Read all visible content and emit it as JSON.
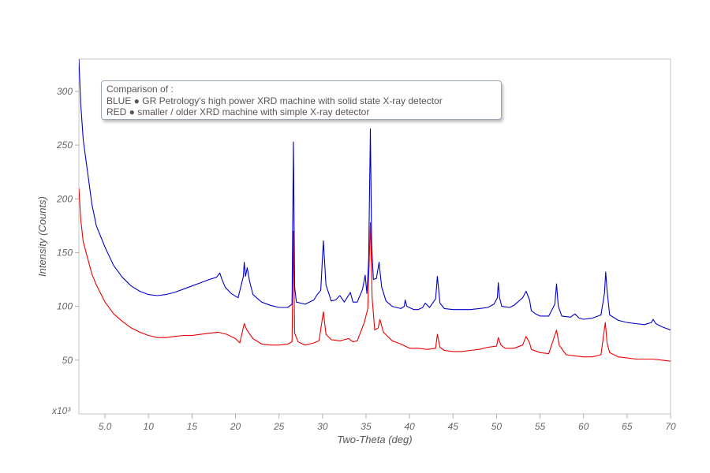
{
  "chart_data": {
    "type": "line",
    "title": "",
    "xlabel": "Two-Theta (deg)",
    "ylabel": "Intensity (Counts)",
    "y_multiplier_label": "x10³",
    "xlim": [
      2,
      70
    ],
    "ylim": [
      0,
      330
    ],
    "x_ticks": [
      5,
      10,
      15,
      20,
      25,
      30,
      35,
      40,
      45,
      50,
      55,
      60,
      65,
      70
    ],
    "x_tick_labels": [
      "5.0",
      "10",
      "15",
      "20",
      "25",
      "30",
      "35",
      "40",
      "45",
      "50",
      "55",
      "60",
      "65",
      "70"
    ],
    "y_ticks": [
      50,
      100,
      150,
      200,
      250,
      300
    ],
    "y_tick_labels": [
      "50",
      "100",
      "150",
      "200",
      "250",
      "300"
    ],
    "grid": false,
    "legend": {
      "placement": "top-left",
      "lines": [
        "Comparison of :",
        "BLUE ● GR Petrology's high power XRD machine with solid state X-ray detector",
        "RED ● smaller / older XRD machine with simple X-ray detector"
      ]
    },
    "series": [
      {
        "color": "#0000cc",
        "points": [
          [
            2.0,
            330
          ],
          [
            2.2,
            290
          ],
          [
            2.5,
            255
          ],
          [
            3,
            225
          ],
          [
            3.5,
            195
          ],
          [
            4,
            175
          ],
          [
            5,
            155
          ],
          [
            6,
            138
          ],
          [
            7,
            127
          ],
          [
            8,
            119
          ],
          [
            9,
            114
          ],
          [
            10,
            111
          ],
          [
            11,
            110
          ],
          [
            12,
            111
          ],
          [
            13,
            113
          ],
          [
            14,
            116
          ],
          [
            15,
            119
          ],
          [
            16,
            122
          ],
          [
            17,
            125
          ],
          [
            17.8,
            127
          ],
          [
            18.2,
            131
          ],
          [
            18.4,
            126
          ],
          [
            18.8,
            118
          ],
          [
            19.5,
            112
          ],
          [
            20.3,
            108
          ],
          [
            20.9,
            128
          ],
          [
            21.0,
            141
          ],
          [
            21.15,
            128
          ],
          [
            21.35,
            136
          ],
          [
            21.6,
            124
          ],
          [
            22,
            111
          ],
          [
            23,
            104
          ],
          [
            24,
            101
          ],
          [
            25,
            99
          ],
          [
            26,
            99
          ],
          [
            26.5,
            102
          ],
          [
            26.65,
            253
          ],
          [
            26.8,
            118
          ],
          [
            27.0,
            104
          ],
          [
            28,
            102
          ],
          [
            29,
            106
          ],
          [
            29.4,
            111
          ],
          [
            29.8,
            115
          ],
          [
            30.1,
            161
          ],
          [
            30.4,
            120
          ],
          [
            31,
            105
          ],
          [
            31.5,
            106
          ],
          [
            32,
            110
          ],
          [
            32.5,
            104
          ],
          [
            33.2,
            113
          ],
          [
            33.5,
            104
          ],
          [
            34,
            104
          ],
          [
            34.6,
            116
          ],
          [
            34.9,
            129
          ],
          [
            35.1,
            112
          ],
          [
            35.3,
            143
          ],
          [
            35.5,
            265
          ],
          [
            35.65,
            158
          ],
          [
            35.85,
            125
          ],
          [
            36.2,
            126
          ],
          [
            36.5,
            141
          ],
          [
            36.8,
            118
          ],
          [
            37.3,
            105
          ],
          [
            38,
            100
          ],
          [
            39,
            98
          ],
          [
            39.4,
            100
          ],
          [
            39.5,
            106
          ],
          [
            39.7,
            100
          ],
          [
            40.5,
            97
          ],
          [
            41,
            97
          ],
          [
            41.5,
            99
          ],
          [
            41.8,
            103
          ],
          [
            42.3,
            99
          ],
          [
            43.0,
            107
          ],
          [
            43.2,
            128
          ],
          [
            43.5,
            103
          ],
          [
            44,
            98
          ],
          [
            45,
            97
          ],
          [
            46,
            97
          ],
          [
            47,
            97
          ],
          [
            48,
            98
          ],
          [
            49,
            99
          ],
          [
            49.7,
            102
          ],
          [
            50.1,
            108
          ],
          [
            50.2,
            122
          ],
          [
            50.35,
            108
          ],
          [
            50.6,
            100
          ],
          [
            51.5,
            99
          ],
          [
            52,
            101
          ],
          [
            53,
            108
          ],
          [
            53.4,
            114
          ],
          [
            53.8,
            106
          ],
          [
            54,
            96
          ],
          [
            54.5,
            93
          ],
          [
            55,
            91
          ],
          [
            56,
            91
          ],
          [
            56.7,
            102
          ],
          [
            56.9,
            121
          ],
          [
            57.1,
            100
          ],
          [
            57.5,
            91
          ],
          [
            58.5,
            90
          ],
          [
            59,
            93
          ],
          [
            59.5,
            89
          ],
          [
            60,
            88
          ],
          [
            61,
            89
          ],
          [
            62,
            92
          ],
          [
            62.4,
            112
          ],
          [
            62.55,
            132
          ],
          [
            62.7,
            115
          ],
          [
            63,
            92
          ],
          [
            64,
            87
          ],
          [
            65,
            85
          ],
          [
            66,
            84
          ],
          [
            67,
            83
          ],
          [
            67.8,
            85
          ],
          [
            68.0,
            88
          ],
          [
            68.3,
            84
          ],
          [
            69,
            81
          ],
          [
            70,
            78
          ]
        ]
      },
      {
        "color": "#ee0000",
        "points": [
          [
            2.0,
            210
          ],
          [
            2.2,
            182
          ],
          [
            2.5,
            160
          ],
          [
            3,
            145
          ],
          [
            3.5,
            130
          ],
          [
            4,
            120
          ],
          [
            5,
            104
          ],
          [
            6,
            93
          ],
          [
            7,
            86
          ],
          [
            8,
            80
          ],
          [
            9,
            76
          ],
          [
            10,
            73
          ],
          [
            11,
            71
          ],
          [
            12,
            71
          ],
          [
            13,
            72
          ],
          [
            14,
            73
          ],
          [
            15,
            73
          ],
          [
            16,
            74
          ],
          [
            17,
            75
          ],
          [
            18,
            76
          ],
          [
            19,
            74
          ],
          [
            20,
            70
          ],
          [
            20.5,
            66
          ],
          [
            21.0,
            84
          ],
          [
            21.3,
            78
          ],
          [
            22,
            70
          ],
          [
            23,
            65
          ],
          [
            24,
            64
          ],
          [
            25,
            64
          ],
          [
            26,
            65
          ],
          [
            26.5,
            67
          ],
          [
            26.65,
            170
          ],
          [
            26.8,
            75
          ],
          [
            27.2,
            67
          ],
          [
            28,
            64
          ],
          [
            29,
            66
          ],
          [
            29.6,
            68
          ],
          [
            30.1,
            95
          ],
          [
            30.4,
            74
          ],
          [
            31,
            69
          ],
          [
            32,
            68
          ],
          [
            32.5,
            69
          ],
          [
            33,
            70
          ],
          [
            33.5,
            67
          ],
          [
            34,
            68
          ],
          [
            34.8,
            85
          ],
          [
            35.2,
            98
          ],
          [
            35.5,
            178
          ],
          [
            35.7,
            108
          ],
          [
            36,
            78
          ],
          [
            36.4,
            80
          ],
          [
            36.6,
            88
          ],
          [
            37,
            76
          ],
          [
            38,
            68
          ],
          [
            39,
            65
          ],
          [
            40,
            61
          ],
          [
            41,
            61
          ],
          [
            42,
            60
          ],
          [
            43,
            61
          ],
          [
            43.2,
            74
          ],
          [
            43.5,
            62
          ],
          [
            44,
            59
          ],
          [
            45,
            58
          ],
          [
            46,
            58
          ],
          [
            47,
            59
          ],
          [
            48,
            60
          ],
          [
            49,
            62
          ],
          [
            50,
            63
          ],
          [
            50.2,
            71
          ],
          [
            50.5,
            64
          ],
          [
            51,
            61
          ],
          [
            52,
            61
          ],
          [
            53,
            64
          ],
          [
            53.4,
            72
          ],
          [
            53.8,
            66
          ],
          [
            54,
            60
          ],
          [
            55,
            57
          ],
          [
            56,
            56
          ],
          [
            56.9,
            78
          ],
          [
            57.2,
            64
          ],
          [
            58,
            55
          ],
          [
            59,
            54
          ],
          [
            60,
            53
          ],
          [
            61,
            53
          ],
          [
            62,
            55
          ],
          [
            62.5,
            85
          ],
          [
            62.7,
            66
          ],
          [
            63,
            57
          ],
          [
            64,
            53
          ],
          [
            65,
            52
          ],
          [
            66,
            51
          ],
          [
            67,
            51
          ],
          [
            68,
            51
          ],
          [
            69,
            50
          ],
          [
            70,
            49
          ]
        ]
      }
    ]
  }
}
